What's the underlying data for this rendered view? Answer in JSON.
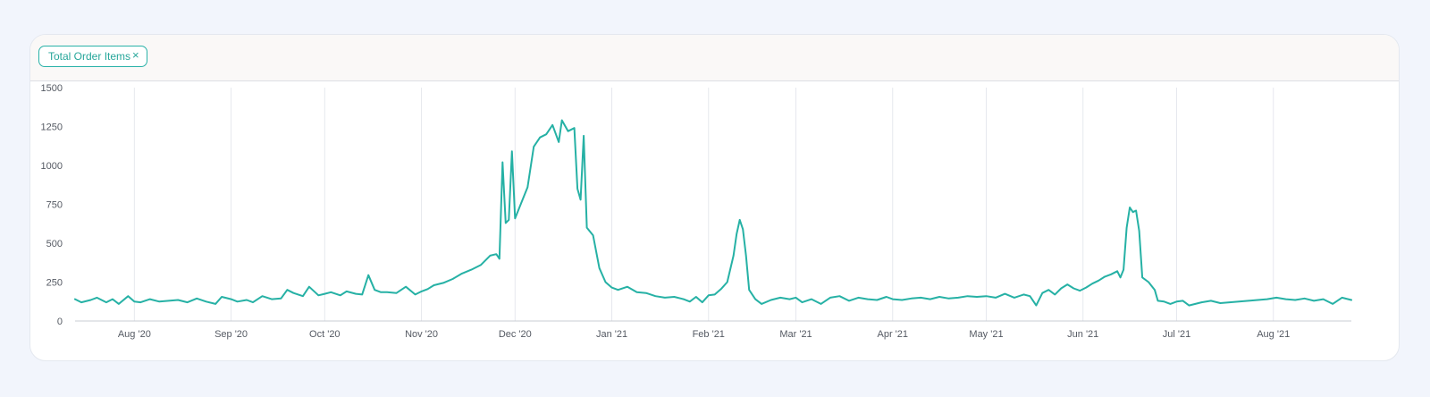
{
  "legend": {
    "chip_label": "Total Order Items",
    "close_glyph": "×",
    "close_icon": "close-icon"
  },
  "colors": {
    "line": "#26b1a5",
    "grid": "#e6e8ee",
    "axis_text": "#555a63",
    "chip_border": "#2ab2a8"
  },
  "chart_data": {
    "type": "line",
    "title": "",
    "xlabel": "",
    "ylabel": "",
    "ylim": [
      0,
      1500
    ],
    "yticks": [
      0,
      250,
      500,
      750,
      1000,
      1250,
      1500
    ],
    "xlim": [
      "2020-07-13",
      "2021-08-26"
    ],
    "xticks": [
      {
        "label": "Aug '20",
        "date": "2020-08-01"
      },
      {
        "label": "Sep '20",
        "date": "2020-09-01"
      },
      {
        "label": "Oct '20",
        "date": "2020-10-01"
      },
      {
        "label": "Nov '20",
        "date": "2020-11-01"
      },
      {
        "label": "Dec '20",
        "date": "2020-12-01"
      },
      {
        "label": "Jan '21",
        "date": "2021-01-01"
      },
      {
        "label": "Feb '21",
        "date": "2021-02-01"
      },
      {
        "label": "Mar '21",
        "date": "2021-03-01"
      },
      {
        "label": "Apr '21",
        "date": "2021-04-01"
      },
      {
        "label": "May '21",
        "date": "2021-05-01"
      },
      {
        "label": "Jun '21",
        "date": "2021-06-01"
      },
      {
        "label": "Jul '21",
        "date": "2021-07-01"
      },
      {
        "label": "Aug '21",
        "date": "2021-08-01"
      }
    ],
    "grid": true,
    "series": [
      {
        "name": "Total Order Items",
        "points": [
          [
            "2020-07-13",
            140
          ],
          [
            "2020-07-15",
            120
          ],
          [
            "2020-07-18",
            135
          ],
          [
            "2020-07-20",
            150
          ],
          [
            "2020-07-23",
            120
          ],
          [
            "2020-07-25",
            140
          ],
          [
            "2020-07-27",
            110
          ],
          [
            "2020-07-30",
            160
          ],
          [
            "2020-08-01",
            125
          ],
          [
            "2020-08-03",
            120
          ],
          [
            "2020-08-06",
            140
          ],
          [
            "2020-08-09",
            125
          ],
          [
            "2020-08-12",
            130
          ],
          [
            "2020-08-15",
            135
          ],
          [
            "2020-08-18",
            120
          ],
          [
            "2020-08-21",
            145
          ],
          [
            "2020-08-24",
            125
          ],
          [
            "2020-08-27",
            110
          ],
          [
            "2020-08-29",
            155
          ],
          [
            "2020-09-01",
            140
          ],
          [
            "2020-09-03",
            125
          ],
          [
            "2020-09-06",
            135
          ],
          [
            "2020-09-08",
            120
          ],
          [
            "2020-09-11",
            160
          ],
          [
            "2020-09-14",
            140
          ],
          [
            "2020-09-17",
            145
          ],
          [
            "2020-09-19",
            200
          ],
          [
            "2020-09-21",
            180
          ],
          [
            "2020-09-24",
            160
          ],
          [
            "2020-09-26",
            220
          ],
          [
            "2020-09-29",
            165
          ],
          [
            "2020-10-01",
            175
          ],
          [
            "2020-10-03",
            185
          ],
          [
            "2020-10-06",
            165
          ],
          [
            "2020-10-08",
            190
          ],
          [
            "2020-10-11",
            175
          ],
          [
            "2020-10-13",
            170
          ],
          [
            "2020-10-15",
            295
          ],
          [
            "2020-10-17",
            200
          ],
          [
            "2020-10-19",
            185
          ],
          [
            "2020-10-21",
            185
          ],
          [
            "2020-10-24",
            180
          ],
          [
            "2020-10-27",
            220
          ],
          [
            "2020-10-30",
            170
          ],
          [
            "2020-11-01",
            190
          ],
          [
            "2020-11-03",
            205
          ],
          [
            "2020-11-05",
            230
          ],
          [
            "2020-11-08",
            245
          ],
          [
            "2020-11-11",
            270
          ],
          [
            "2020-11-14",
            305
          ],
          [
            "2020-11-17",
            330
          ],
          [
            "2020-11-20",
            360
          ],
          [
            "2020-11-23",
            420
          ],
          [
            "2020-11-25",
            430
          ],
          [
            "2020-11-26",
            400
          ],
          [
            "2020-11-27",
            1020
          ],
          [
            "2020-11-28",
            630
          ],
          [
            "2020-11-29",
            650
          ],
          [
            "2020-11-30",
            1090
          ],
          [
            "2020-12-01",
            660
          ],
          [
            "2020-12-03",
            760
          ],
          [
            "2020-12-05",
            860
          ],
          [
            "2020-12-07",
            1120
          ],
          [
            "2020-12-09",
            1180
          ],
          [
            "2020-12-11",
            1200
          ],
          [
            "2020-12-13",
            1260
          ],
          [
            "2020-12-15",
            1150
          ],
          [
            "2020-12-16",
            1290
          ],
          [
            "2020-12-18",
            1220
          ],
          [
            "2020-12-20",
            1240
          ],
          [
            "2020-12-21",
            850
          ],
          [
            "2020-12-22",
            780
          ],
          [
            "2020-12-23",
            1190
          ],
          [
            "2020-12-24",
            600
          ],
          [
            "2020-12-26",
            550
          ],
          [
            "2020-12-28",
            340
          ],
          [
            "2020-12-30",
            250
          ],
          [
            "2021-01-01",
            215
          ],
          [
            "2021-01-03",
            200
          ],
          [
            "2021-01-06",
            220
          ],
          [
            "2021-01-09",
            185
          ],
          [
            "2021-01-12",
            180
          ],
          [
            "2021-01-15",
            160
          ],
          [
            "2021-01-18",
            150
          ],
          [
            "2021-01-21",
            155
          ],
          [
            "2021-01-24",
            140
          ],
          [
            "2021-01-26",
            125
          ],
          [
            "2021-01-28",
            155
          ],
          [
            "2021-01-30",
            120
          ],
          [
            "2021-02-01",
            165
          ],
          [
            "2021-02-03",
            170
          ],
          [
            "2021-02-05",
            205
          ],
          [
            "2021-02-07",
            250
          ],
          [
            "2021-02-09",
            420
          ],
          [
            "2021-02-10",
            560
          ],
          [
            "2021-02-11",
            650
          ],
          [
            "2021-02-12",
            590
          ],
          [
            "2021-02-13",
            420
          ],
          [
            "2021-02-14",
            200
          ],
          [
            "2021-02-16",
            140
          ],
          [
            "2021-02-18",
            110
          ],
          [
            "2021-02-21",
            135
          ],
          [
            "2021-02-24",
            150
          ],
          [
            "2021-02-27",
            140
          ],
          [
            "2021-03-01",
            150
          ],
          [
            "2021-03-03",
            120
          ],
          [
            "2021-03-06",
            140
          ],
          [
            "2021-03-09",
            110
          ],
          [
            "2021-03-12",
            150
          ],
          [
            "2021-03-15",
            160
          ],
          [
            "2021-03-18",
            130
          ],
          [
            "2021-03-21",
            150
          ],
          [
            "2021-03-24",
            140
          ],
          [
            "2021-03-27",
            135
          ],
          [
            "2021-03-30",
            155
          ],
          [
            "2021-04-01",
            140
          ],
          [
            "2021-04-04",
            135
          ],
          [
            "2021-04-07",
            145
          ],
          [
            "2021-04-10",
            150
          ],
          [
            "2021-04-13",
            140
          ],
          [
            "2021-04-16",
            155
          ],
          [
            "2021-04-19",
            145
          ],
          [
            "2021-04-22",
            150
          ],
          [
            "2021-04-25",
            160
          ],
          [
            "2021-04-28",
            155
          ],
          [
            "2021-05-01",
            160
          ],
          [
            "2021-05-04",
            150
          ],
          [
            "2021-05-07",
            175
          ],
          [
            "2021-05-10",
            150
          ],
          [
            "2021-05-13",
            170
          ],
          [
            "2021-05-15",
            160
          ],
          [
            "2021-05-17",
            100
          ],
          [
            "2021-05-19",
            180
          ],
          [
            "2021-05-21",
            200
          ],
          [
            "2021-05-23",
            170
          ],
          [
            "2021-05-25",
            210
          ],
          [
            "2021-05-27",
            235
          ],
          [
            "2021-05-29",
            210
          ],
          [
            "2021-05-31",
            195
          ],
          [
            "2021-06-02",
            215
          ],
          [
            "2021-06-04",
            240
          ],
          [
            "2021-06-06",
            260
          ],
          [
            "2021-06-08",
            285
          ],
          [
            "2021-06-10",
            300
          ],
          [
            "2021-06-12",
            320
          ],
          [
            "2021-06-13",
            280
          ],
          [
            "2021-06-14",
            330
          ],
          [
            "2021-06-15",
            600
          ],
          [
            "2021-06-16",
            730
          ],
          [
            "2021-06-17",
            700
          ],
          [
            "2021-06-18",
            710
          ],
          [
            "2021-06-19",
            580
          ],
          [
            "2021-06-20",
            280
          ],
          [
            "2021-06-22",
            250
          ],
          [
            "2021-06-24",
            200
          ],
          [
            "2021-06-25",
            130
          ],
          [
            "2021-06-27",
            125
          ],
          [
            "2021-06-29",
            110
          ],
          [
            "2021-07-01",
            125
          ],
          [
            "2021-07-03",
            130
          ],
          [
            "2021-07-05",
            100
          ],
          [
            "2021-07-07",
            110
          ],
          [
            "2021-07-09",
            120
          ],
          [
            "2021-07-12",
            130
          ],
          [
            "2021-07-15",
            115
          ],
          [
            "2021-07-18",
            120
          ],
          [
            "2021-07-21",
            125
          ],
          [
            "2021-07-24",
            130
          ],
          [
            "2021-07-27",
            135
          ],
          [
            "2021-07-30",
            140
          ],
          [
            "2021-08-02",
            150
          ],
          [
            "2021-08-05",
            140
          ],
          [
            "2021-08-08",
            135
          ],
          [
            "2021-08-11",
            145
          ],
          [
            "2021-08-14",
            130
          ],
          [
            "2021-08-17",
            140
          ],
          [
            "2021-08-20",
            110
          ],
          [
            "2021-08-23",
            150
          ],
          [
            "2021-08-26",
            135
          ]
        ]
      }
    ]
  }
}
